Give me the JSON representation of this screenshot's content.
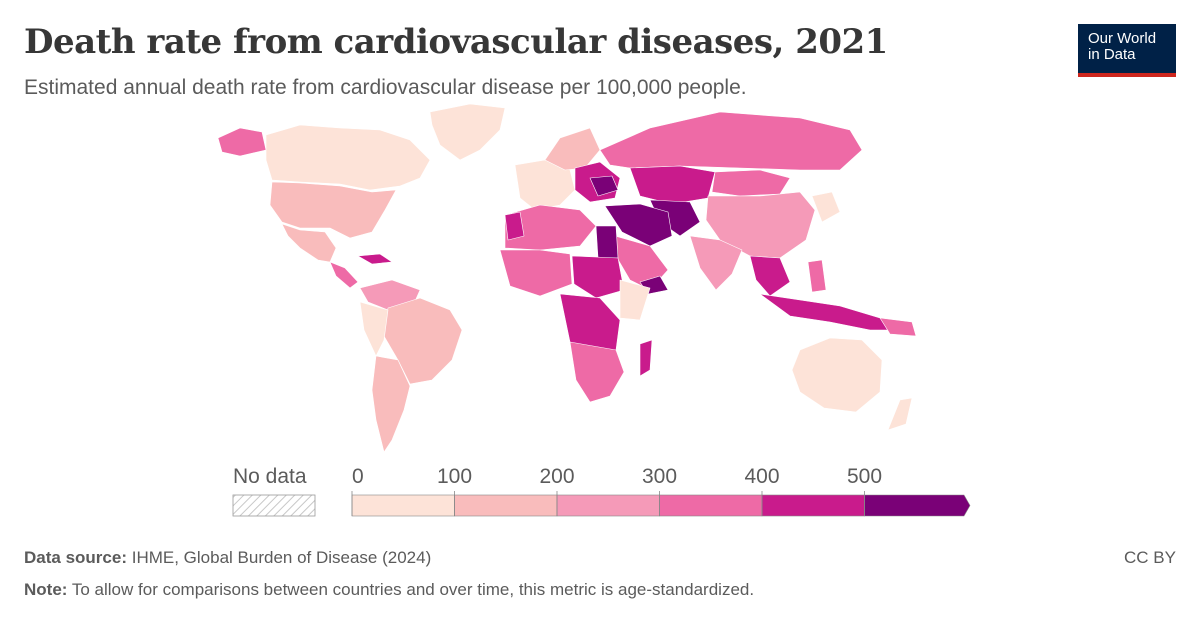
{
  "title": "Death rate from cardiovascular diseases, 2021",
  "subtitle": "Estimated annual death rate from cardiovascular disease per 100,000 people.",
  "logo": {
    "line1": "Our World",
    "line2": "in Data"
  },
  "legend": {
    "no_data_label": "No data",
    "ticks": [
      "0",
      "100",
      "200",
      "300",
      "400",
      "500"
    ],
    "bins": [
      {
        "range": "0-100",
        "color": "#fde3d8"
      },
      {
        "range": "100-200",
        "color": "#f9bcbc"
      },
      {
        "range": "200-300",
        "color": "#f59ab8"
      },
      {
        "range": "300-400",
        "color": "#ee6aa6"
      },
      {
        "range": "400-500",
        "color": "#c91b8c"
      },
      {
        "range": ">500",
        "color": "#7a0177"
      }
    ]
  },
  "footer": {
    "source_label": "Data source:",
    "source_text": "IHME, Global Burden of Disease (2024)",
    "note_label": "Note:",
    "note_text": "To allow for comparisons between countries and over time, this metric is age-standardized.",
    "license": "CC BY"
  }
}
